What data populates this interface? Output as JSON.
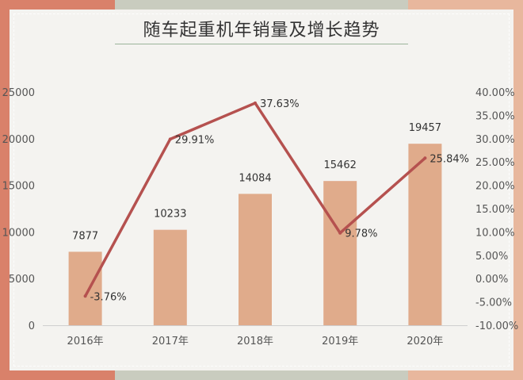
{
  "chart_data": {
    "type": "bar",
    "title": "随车起重机年销量及增长趋势",
    "categories": [
      "2016年",
      "2017年",
      "2018年",
      "2019年",
      "2020年"
    ],
    "series": [
      {
        "type": "bar",
        "values": [
          7877,
          10233,
          14084,
          15462,
          19457
        ],
        "color": "#e0ab8b"
      },
      {
        "type": "line",
        "axis": "right",
        "values": [
          -3.76,
          29.91,
          37.63,
          9.78,
          25.84
        ],
        "value_labels": [
          "-3.76%",
          "29.91%",
          "37.63%",
          "9.78%",
          "25.84%"
        ],
        "color": "#b5514f"
      }
    ],
    "ylim": [
      0,
      25000
    ],
    "y_ticks": [
      "0",
      "5000",
      "10000",
      "15000",
      "20000",
      "25000"
    ],
    "y2lim": [
      -10,
      40
    ],
    "y2_ticks": [
      "-10.00%",
      "-5.00%",
      "0.00%",
      "5.00%",
      "10.00%",
      "15.00%",
      "20.00%",
      "25.00%",
      "30.00%",
      "35.00%",
      "40.00%"
    ],
    "grid": false,
    "legend": "none"
  }
}
